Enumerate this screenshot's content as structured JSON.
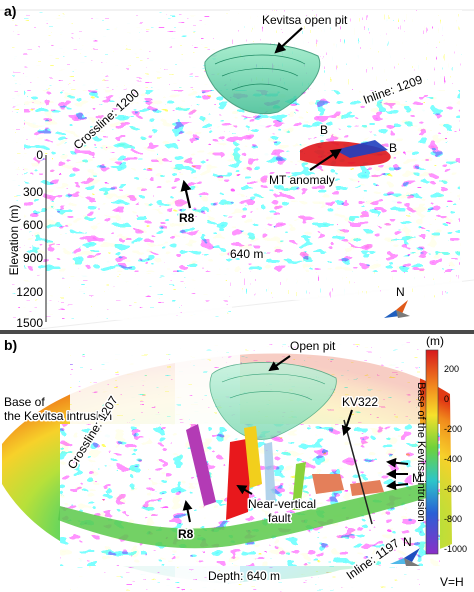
{
  "figure": {
    "panel_a": {
      "label": "a)",
      "annotations": {
        "open_pit": "Kevitsa open pit",
        "inline": "Inline: 1209",
        "crossline": "Crossline: 1200",
        "mt": "MT anomaly",
        "b1": "B",
        "b2": "B",
        "r8": "R8",
        "depth": "640 m",
        "north": "N"
      },
      "axis": {
        "title": "Elevation (m)",
        "ticks": [
          "0",
          "300",
          "600",
          "900",
          "1200",
          "1500"
        ]
      }
    },
    "panel_b": {
      "label": "b)",
      "annotations": {
        "open_pit": "Open pit",
        "base": "Base of\nthe Kevitsa intrusion",
        "crossline": "Crossline: 1207",
        "kv322": "KV322",
        "m": "M",
        "fault": "Near-vertical\nfault",
        "r8": "R8",
        "depth": "Depth: 640 m",
        "inline": "Inline: 1197",
        "north": "N",
        "ratio": "V=H"
      },
      "colorbar": {
        "unit": "(m)",
        "title": "Base of the Kevitsa intrusion",
        "ticks": [
          "200",
          "0",
          "-200",
          "-400",
          "-600",
          "-800",
          "-1000"
        ]
      }
    }
  }
}
